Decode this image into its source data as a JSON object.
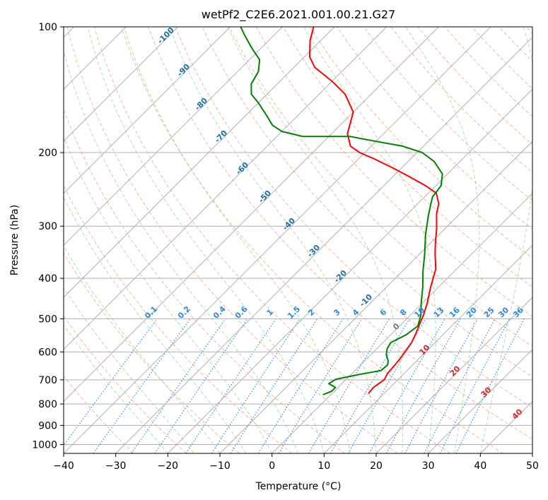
{
  "chart_data": {
    "type": "line",
    "title": "wetPf2_C2E6.2021.001.00.21.G27",
    "xlabel": "Temperature (°C)",
    "ylabel": "Pressure (hPa)",
    "xlim": [
      -40,
      50
    ],
    "ylim": [
      1050,
      100
    ],
    "y_scale": "log",
    "x_ticks": [
      -40,
      -30,
      -20,
      -10,
      0,
      10,
      20,
      30,
      40,
      50
    ],
    "y_ticks": [
      100,
      200,
      300,
      400,
      500,
      600,
      700,
      800,
      900,
      1000
    ],
    "skew": 45,
    "grid": true,
    "series": [
      {
        "color": "#ff0000",
        "points": [
          [
            7.0,
            755
          ],
          [
            6.8,
            730
          ],
          [
            7.4,
            700
          ],
          [
            6.8,
            675
          ],
          [
            6.6,
            645
          ],
          [
            6.4,
            625
          ],
          [
            6.0,
            600
          ],
          [
            5.5,
            570
          ],
          [
            4.5,
            540
          ],
          [
            3.5,
            515
          ],
          [
            2.5,
            490
          ],
          [
            1.0,
            460
          ],
          [
            -1.5,
            420
          ],
          [
            -4.0,
            380
          ],
          [
            -7.0,
            350
          ],
          [
            -9.0,
            330
          ],
          [
            -11.5,
            305
          ],
          [
            -14.5,
            280
          ],
          [
            -16.0,
            265
          ],
          [
            -18.5,
            250
          ],
          [
            -22.0,
            240
          ],
          [
            -27.0,
            228
          ],
          [
            -32.0,
            217
          ],
          [
            -37.0,
            207
          ],
          [
            -41.0,
            200
          ],
          [
            -44.0,
            193
          ],
          [
            -47.0,
            180
          ],
          [
            -50.0,
            160
          ],
          [
            -55.0,
            145
          ],
          [
            -60.0,
            135
          ],
          [
            -66.0,
            125
          ],
          [
            -69.0,
            118
          ],
          [
            -72.0,
            108
          ],
          [
            -74.0,
            100
          ]
        ]
      },
      {
        "color": "#008000",
        "points": [
          [
            -1.5,
            760
          ],
          [
            -0.5,
            745
          ],
          [
            -0.5,
            730
          ],
          [
            -2.5,
            715
          ],
          [
            -2.0,
            698
          ],
          [
            1.5,
            680
          ],
          [
            5.0,
            665
          ],
          [
            5.2,
            645
          ],
          [
            4.5,
            630
          ],
          [
            3.0,
            610
          ],
          [
            2.0,
            590
          ],
          [
            1.5,
            570
          ],
          [
            3.0,
            545
          ],
          [
            3.5,
            520
          ],
          [
            2.0,
            490
          ],
          [
            -0.5,
            455
          ],
          [
            -3.0,
            420
          ],
          [
            -6.0,
            385
          ],
          [
            -9.0,
            350
          ],
          [
            -12.5,
            315
          ],
          [
            -15.5,
            285
          ],
          [
            -17.5,
            265
          ],
          [
            -18.5,
            255
          ],
          [
            -19.0,
            240
          ],
          [
            -21.0,
            225
          ],
          [
            -25.0,
            210
          ],
          [
            -29.0,
            200
          ],
          [
            -34.0,
            193
          ],
          [
            -40.0,
            188
          ],
          [
            -46.0,
            183
          ],
          [
            -55.0,
            183
          ],
          [
            -60.0,
            178
          ],
          [
            -63.0,
            172
          ],
          [
            -66.0,
            163
          ],
          [
            -70.0,
            152
          ],
          [
            -73.0,
            145
          ],
          [
            -75.0,
            137
          ],
          [
            -76.0,
            128
          ],
          [
            -78.0,
            120
          ],
          [
            -82.0,
            112
          ],
          [
            -86.0,
            104
          ],
          [
            -88.0,
            100
          ]
        ]
      }
    ],
    "dry_adiabat_labels": [
      "-100",
      "-90",
      "-80",
      "-70",
      "-60",
      "-50",
      "-40",
      "-30",
      "-20",
      "-10"
    ],
    "mixing_ratio_labels": [
      "0.1",
      "0.2",
      "0.4",
      "0.6",
      "1",
      "1.5",
      "2",
      "3",
      "4",
      "6",
      "8",
      "10",
      "13",
      "16",
      "20",
      "25",
      "30",
      "36"
    ],
    "moist_adiabat_labels": [
      "0",
      "10",
      "20",
      "30",
      "40"
    ]
  }
}
